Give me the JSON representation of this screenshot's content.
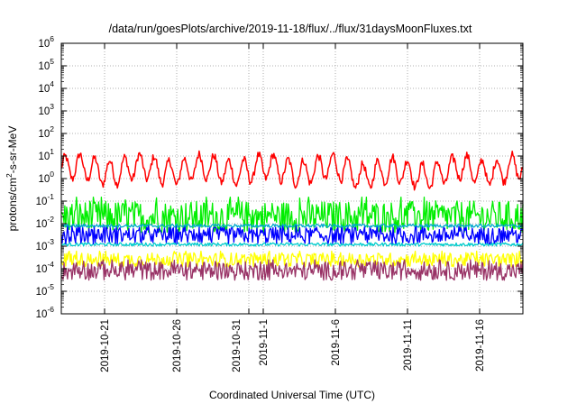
{
  "chart_data": {
    "type": "line",
    "title": "/data/run/goesPlots/archive/2019-11-18/flux/../flux/31daysMoonFluxes.txt",
    "xlabel": "Coordinated Universal Time (UTC)",
    "ylabel": "protons/cm²-s-sr-MeV",
    "ylabel_parts": {
      "base": "protons/cm",
      "sup": "2",
      "rest": "-s-sr-MeV"
    },
    "y_scale": "log",
    "ylim_exponents": [
      -6,
      6
    ],
    "y_ticks": [
      {
        "base": "10",
        "exp": "-6"
      },
      {
        "base": "10",
        "exp": "-5"
      },
      {
        "base": "10",
        "exp": "-4"
      },
      {
        "base": "10",
        "exp": "-3"
      },
      {
        "base": "10",
        "exp": "-2"
      },
      {
        "base": "10",
        "exp": "-1"
      },
      {
        "base": "10",
        "exp": "0"
      },
      {
        "base": "10",
        "exp": "1"
      },
      {
        "base": "10",
        "exp": "2"
      },
      {
        "base": "10",
        "exp": "3"
      },
      {
        "base": "10",
        "exp": "4"
      },
      {
        "base": "10",
        "exp": "5"
      },
      {
        "base": "10",
        "exp": "6"
      }
    ],
    "x_range_days": [
      "2019-10-18",
      "2019-11-19"
    ],
    "x_ticks": [
      {
        "date": "2019-10-21",
        "label": "2019-10-21"
      },
      {
        "date": "2019-10-26",
        "label": "2019-10-26"
      },
      {
        "date": "2019-10-31",
        "label": "2019-10-31"
      },
      {
        "date": "2019-11-01",
        "label": "2019-11-1"
      },
      {
        "date": "2019-11-06",
        "label": "2019-11-6"
      },
      {
        "date": "2019-11-11",
        "label": "2019-11-11"
      },
      {
        "date": "2019-11-16",
        "label": "2019-11-16"
      }
    ],
    "grid": true,
    "legend": "none",
    "series": [
      {
        "color": "#ff0000",
        "approx_level": 2.5,
        "range": [
          0.2,
          60
        ]
      },
      {
        "color": "#00ee00",
        "approx_level": 0.02,
        "range": [
          0.004,
          0.15
        ]
      },
      {
        "color": "#00cccc",
        "approx_level": 0.0012,
        "range": [
          0.0009,
          0.0018
        ]
      },
      {
        "color": "#0000ff",
        "approx_level": 0.003,
        "range": [
          0.0012,
          0.008
        ]
      },
      {
        "color": "#00aacc",
        "approx_level": 0.008,
        "range": [
          0.007,
          0.01
        ]
      },
      {
        "color": "#ffff00",
        "approx_level": 0.00025,
        "range": [
          0.00012,
          0.0006
        ]
      },
      {
        "color": "#993366",
        "approx_level": 8e-05,
        "range": [
          3e-05,
          0.00025
        ]
      }
    ]
  }
}
